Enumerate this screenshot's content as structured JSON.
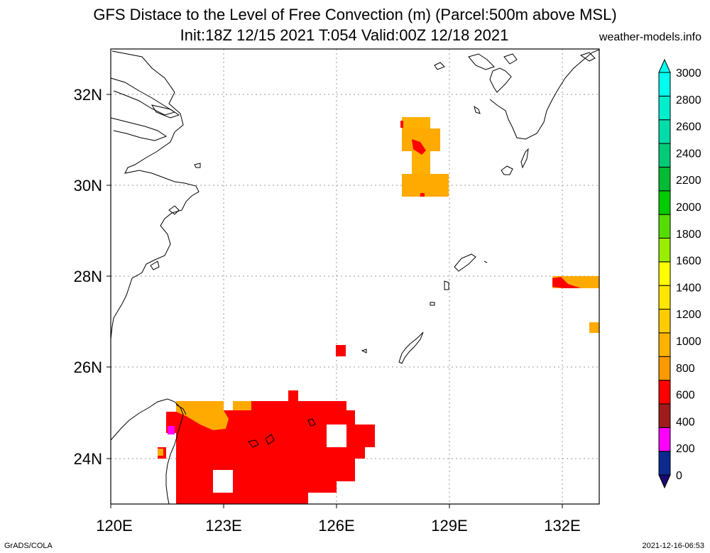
{
  "header": {
    "title_line1": "GFS Distace to the Level of Free Convection (m) (Parcel:500m above MSL)",
    "title_line2": "Init:18Z 12/15 2021 T:054 Valid:00Z 12/18 2021",
    "site": "weather-models.info"
  },
  "map": {
    "lon_labels": [
      "120E",
      "123E",
      "126E",
      "129E",
      "132E"
    ],
    "lat_labels": [
      "32N",
      "30N",
      "28N",
      "26N",
      "24N"
    ]
  },
  "colorbar": {
    "labels": [
      "3000",
      "2800",
      "2600",
      "2400",
      "2200",
      "2000",
      "1800",
      "1600",
      "1400",
      "1200",
      "1000",
      "800",
      "600",
      "400",
      "200",
      "0"
    ],
    "colors": [
      "#0b2a8f",
      "#ff00ff",
      "#a01c1c",
      "#ff0000",
      "#ff9900",
      "#ffb300",
      "#ffcc00",
      "#ffe600",
      "#ffff00",
      "#99ee00",
      "#55dd00",
      "#00cc00",
      "#00bb33",
      "#00cc77",
      "#00ddaa",
      "#00eecc",
      "#00ffee"
    ]
  },
  "footer": {
    "left": "GrADS/COLA",
    "right": "2021-12-16-06:53"
  }
}
